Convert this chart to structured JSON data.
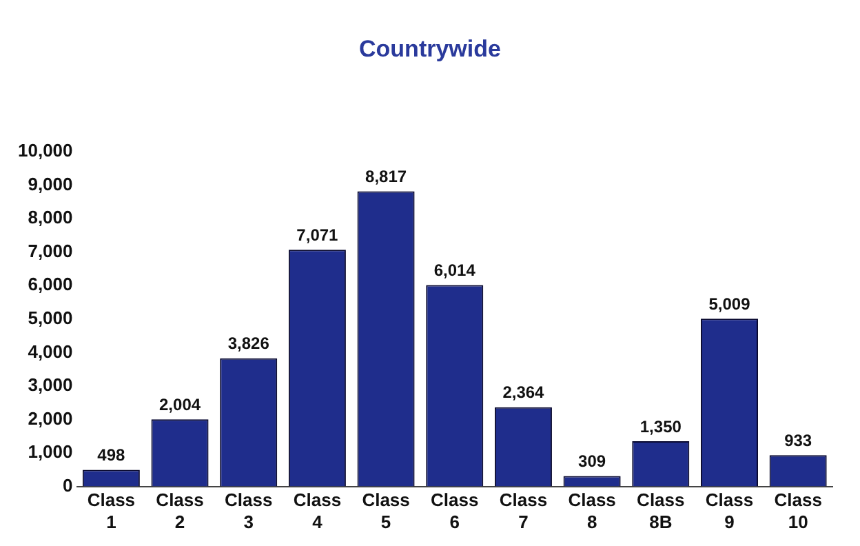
{
  "chart_data": {
    "type": "bar",
    "title": "Countrywide",
    "categories": [
      "Class 1",
      "Class 2",
      "Class 3",
      "Class 4",
      "Class 5",
      "Class 6",
      "Class 7",
      "Class 8",
      "Class 8B",
      "Class 9",
      "Class 10"
    ],
    "values": [
      498,
      2004,
      3826,
      7071,
      8817,
      6014,
      2364,
      309,
      1350,
      5009,
      933
    ],
    "value_labels": [
      "498",
      "2,004",
      "3,826",
      "7,071",
      "8,817",
      "6,014",
      "2,364",
      "309",
      "1,350",
      "5,009",
      "933"
    ],
    "color": "#1f2d8c",
    "ylim": [
      0,
      10000
    ],
    "yticks": [
      0,
      {
        "value": 1000,
        "label": "1,000"
      },
      {
        "value": 2000,
        "label": "2,000"
      },
      {
        "value": 3000,
        "label": "3,000"
      },
      {
        "value": 4000,
        "label": "4,000"
      },
      {
        "value": 5000,
        "label": "5,000"
      },
      {
        "value": 6000,
        "label": "6,000"
      },
      {
        "value": 7000,
        "label": "7,000"
      },
      {
        "value": 8000,
        "label": "8,000"
      },
      {
        "value": 9000,
        "label": "9,000"
      },
      {
        "value": 10000,
        "label": "10,000"
      }
    ],
    "grid": false
  }
}
